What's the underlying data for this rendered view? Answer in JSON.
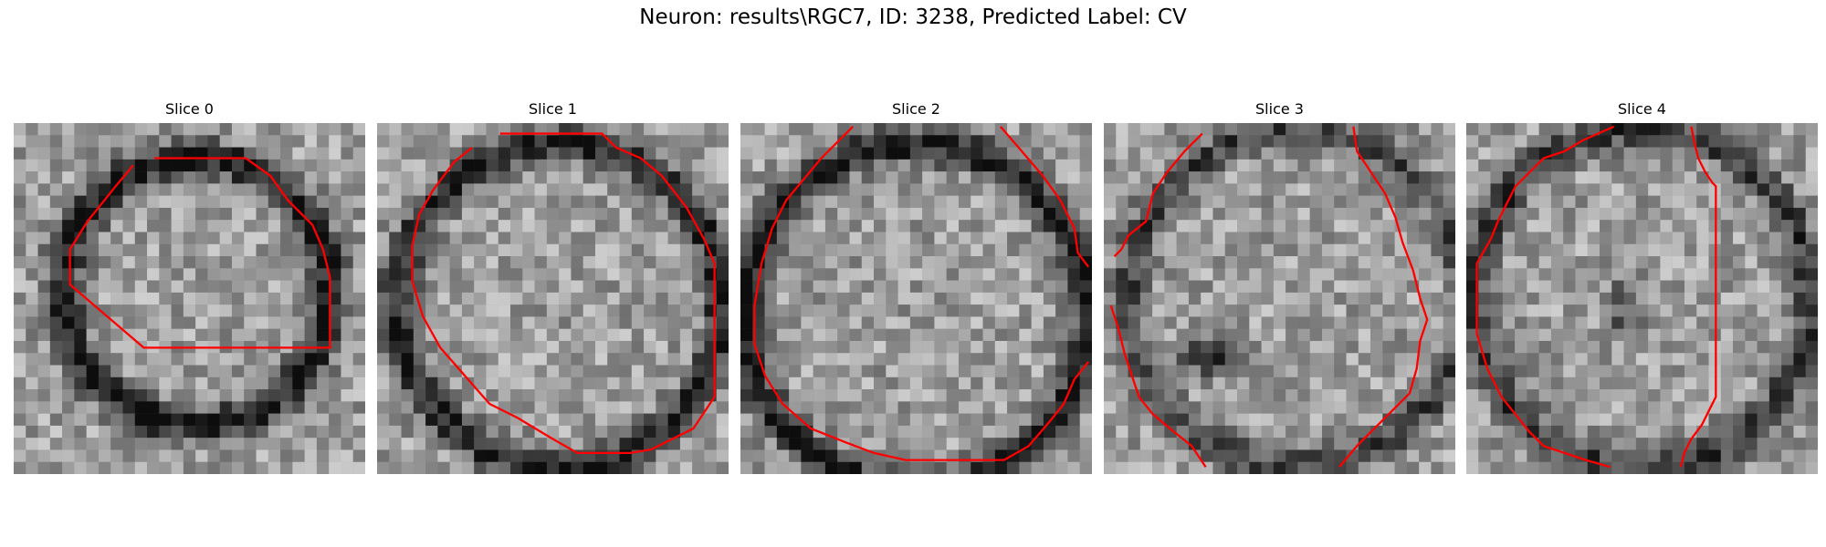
{
  "figure": {
    "title": "Neuron: results\\RGC7, ID: 3238, Predicted Label: CV"
  },
  "colors": {
    "contour": "#ff0000"
  },
  "panels": [
    {
      "title": "Slice 0"
    },
    {
      "title": "Slice 1"
    },
    {
      "title": "Slice 2"
    },
    {
      "title": "Slice 3"
    },
    {
      "title": "Slice 4"
    }
  ]
}
